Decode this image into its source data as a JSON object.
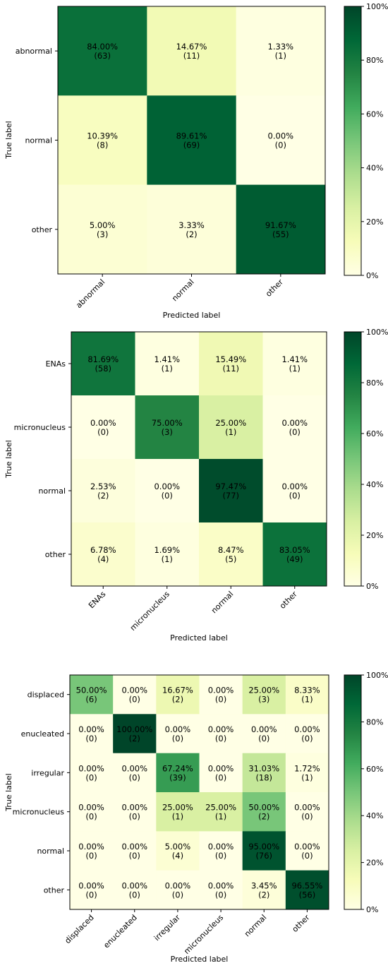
{
  "chart_data": [
    {
      "type": "heatmap",
      "xlabel": "Predicted label",
      "ylabel": "True label",
      "labels": [
        "abnormal",
        "normal",
        "other"
      ],
      "percent": [
        [
          84.0,
          14.67,
          1.33
        ],
        [
          10.39,
          89.61,
          0.0
        ],
        [
          5.0,
          3.33,
          91.67
        ]
      ],
      "counts": [
        [
          63,
          11,
          1
        ],
        [
          8,
          69,
          0
        ],
        [
          3,
          2,
          55
        ]
      ],
      "colorbar": {
        "ticks": [
          "0%",
          "20%",
          "40%",
          "60%",
          "80%",
          "100%"
        ],
        "range": [
          0,
          100
        ]
      }
    },
    {
      "type": "heatmap",
      "xlabel": "Predicted label",
      "ylabel": "True label",
      "labels": [
        "ENAs",
        "micronucleus",
        "normal",
        "other"
      ],
      "percent": [
        [
          81.69,
          1.41,
          15.49,
          1.41
        ],
        [
          0.0,
          75.0,
          25.0,
          0.0
        ],
        [
          2.53,
          0.0,
          97.47,
          0.0
        ],
        [
          6.78,
          1.69,
          8.47,
          83.05
        ]
      ],
      "counts": [
        [
          58,
          1,
          11,
          1
        ],
        [
          0,
          3,
          1,
          0
        ],
        [
          2,
          0,
          77,
          0
        ],
        [
          4,
          1,
          5,
          49
        ]
      ],
      "colorbar": {
        "ticks": [
          "0%",
          "20%",
          "40%",
          "60%",
          "80%",
          "100%"
        ],
        "range": [
          0,
          100
        ]
      }
    },
    {
      "type": "heatmap",
      "xlabel": "Predicted label",
      "ylabel": "True label",
      "labels": [
        "displaced",
        "enucleated",
        "irregular",
        "micronucleus",
        "normal",
        "other"
      ],
      "percent": [
        [
          50.0,
          0.0,
          16.67,
          0.0,
          25.0,
          8.33
        ],
        [
          0.0,
          100.0,
          0.0,
          0.0,
          0.0,
          0.0
        ],
        [
          0.0,
          0.0,
          67.24,
          0.0,
          31.03,
          1.72
        ],
        [
          0.0,
          0.0,
          25.0,
          25.0,
          50.0,
          0.0
        ],
        [
          0.0,
          0.0,
          5.0,
          0.0,
          95.0,
          0.0
        ],
        [
          0.0,
          0.0,
          0.0,
          0.0,
          3.45,
          96.55
        ]
      ],
      "counts": [
        [
          6,
          0,
          2,
          0,
          3,
          1
        ],
        [
          0,
          2,
          0,
          0,
          0,
          0
        ],
        [
          0,
          0,
          39,
          0,
          18,
          1
        ],
        [
          0,
          0,
          1,
          1,
          2,
          0
        ],
        [
          0,
          0,
          4,
          0,
          76,
          0
        ],
        [
          0,
          0,
          0,
          0,
          2,
          56
        ]
      ],
      "colorbar": {
        "ticks": [
          "0%",
          "20%",
          "40%",
          "60%",
          "80%",
          "100%"
        ],
        "range": [
          0,
          100
        ]
      }
    }
  ]
}
